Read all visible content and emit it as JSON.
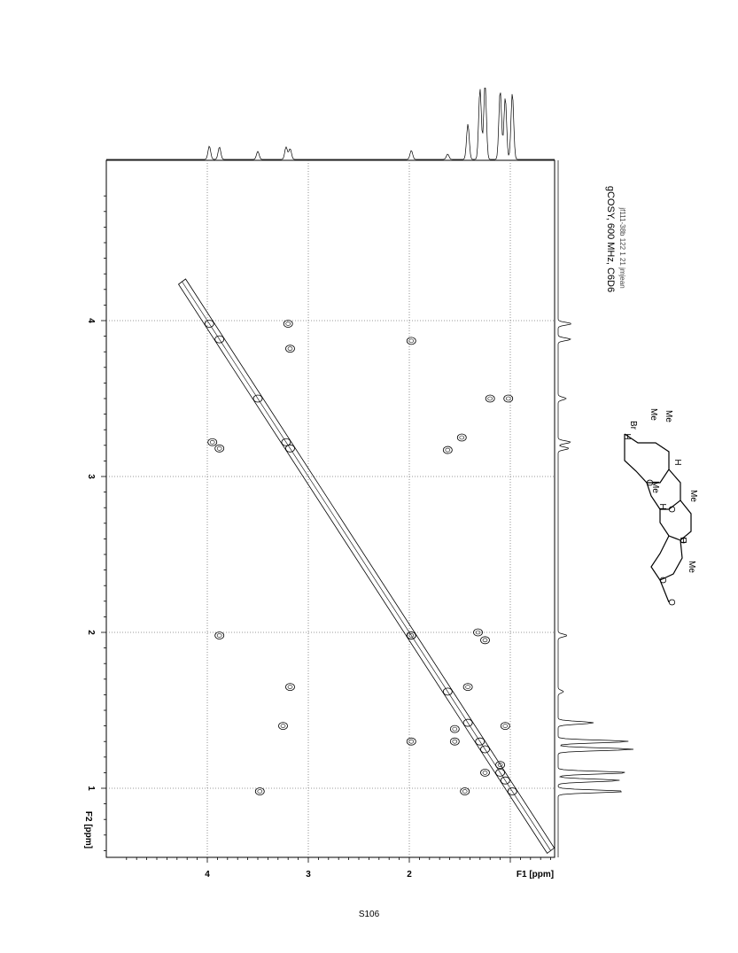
{
  "page_number": "S106",
  "title": "gCOSY, 600 MHz, C6D6",
  "header_text": "jf111-38b  122  1  21  jmjean",
  "molecule": {
    "labels": [
      "Br",
      "Me",
      "Me",
      "H",
      "H",
      "Me",
      "H",
      "Me",
      "H",
      "Me",
      "O",
      "O",
      "O",
      "O",
      "O"
    ]
  },
  "chart_data": {
    "type": "heatmap",
    "subtype": "2D NMR gCOSY contour plot",
    "x_axis": {
      "label": "F1 [ppm]",
      "ticks": [
        "4",
        "3",
        "2"
      ],
      "range": [
        4.9,
        0.55
      ],
      "reversed": true
    },
    "y_axis": {
      "label": "F2 [ppm]",
      "ticks": [
        "4",
        "3",
        "2",
        "1"
      ],
      "range": [
        4.75,
        0.55
      ],
      "reversed": true
    },
    "diagonal": {
      "from": [
        4.25,
        4.25
      ],
      "to": [
        0.6,
        0.6
      ]
    },
    "cross_peaks": [
      [
        3.2,
        3.98
      ],
      [
        3.18,
        3.82
      ],
      [
        1.98,
        3.87
      ],
      [
        1.2,
        3.5
      ],
      [
        1.02,
        3.5
      ],
      [
        3.95,
        3.22
      ],
      [
        3.88,
        3.18
      ],
      [
        1.62,
        3.17
      ],
      [
        1.48,
        3.25
      ],
      [
        3.88,
        1.98
      ],
      [
        1.98,
        1.98
      ],
      [
        1.32,
        2.0
      ],
      [
        1.25,
        1.95
      ],
      [
        3.18,
        1.65
      ],
      [
        1.42,
        1.65
      ],
      [
        3.25,
        1.4
      ],
      [
        1.55,
        1.38
      ],
      [
        1.05,
        1.4
      ],
      [
        1.98,
        1.3
      ],
      [
        1.55,
        1.3
      ],
      [
        3.48,
        0.98
      ],
      [
        1.45,
        0.98
      ],
      [
        1.25,
        1.1
      ],
      [
        1.1,
        1.15
      ]
    ],
    "guide_lines_x": [
      4.0,
      3.0,
      2.0,
      1.0
    ],
    "guide_lines_y": [
      4.0,
      3.0,
      2.0,
      1.0
    ],
    "projection_1d_top": {
      "peaks_ppm": [
        3.98,
        3.88,
        3.5,
        3.22,
        3.18,
        1.98,
        1.62,
        1.42,
        1.3,
        1.25,
        1.1,
        1.05,
        0.98
      ]
    },
    "projection_1d_right": {
      "peaks_ppm": [
        3.98,
        3.88,
        3.5,
        3.22,
        3.18,
        1.98,
        1.62,
        1.42,
        1.3,
        1.25,
        1.1,
        1.05,
        0.98
      ]
    }
  }
}
